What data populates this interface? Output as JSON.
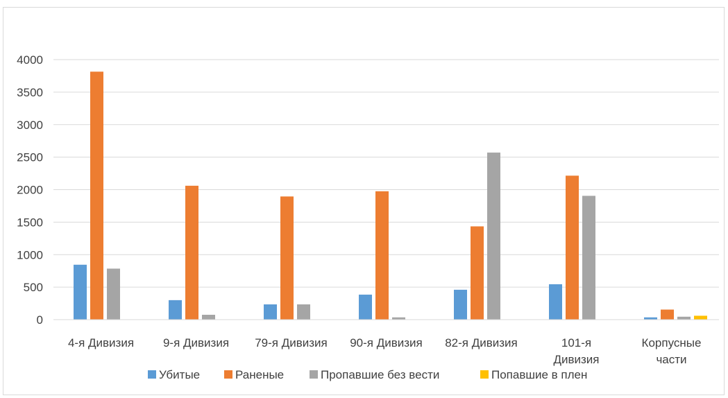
{
  "chart_data": {
    "type": "bar",
    "title": "",
    "xlabel": "",
    "ylabel": "",
    "ylim": [
      0,
      4000
    ],
    "yticks": [
      0,
      500,
      1000,
      1500,
      2000,
      2500,
      3000,
      3500,
      4000
    ],
    "grid": true,
    "legend_position": "bottom",
    "categories": [
      [
        "4-я Дивизия"
      ],
      [
        "9-я Дивизия"
      ],
      [
        "79-я Дивизия"
      ],
      [
        "90-я Дивизия"
      ],
      [
        "82-я Дивизия"
      ],
      [
        "101-я",
        "Дивизия"
      ],
      [
        "Корпусные",
        "части"
      ]
    ],
    "series": [
      {
        "name": "Убитые",
        "color": "#5b9bd5",
        "values": [
          845,
          300,
          235,
          385,
          460,
          545,
          35
        ]
      },
      {
        "name": "Раненые",
        "color": "#ed7d31",
        "values": [
          3815,
          2060,
          1895,
          1975,
          1435,
          2215,
          155
        ]
      },
      {
        "name": "Пропавшие без вести",
        "color": "#a5a5a5",
        "values": [
          785,
          75,
          235,
          35,
          2570,
          1905,
          45
        ]
      },
      {
        "name": "Попавшие в плен",
        "color": "#ffc000",
        "values": [
          0,
          0,
          0,
          0,
          0,
          0,
          60
        ]
      }
    ]
  }
}
